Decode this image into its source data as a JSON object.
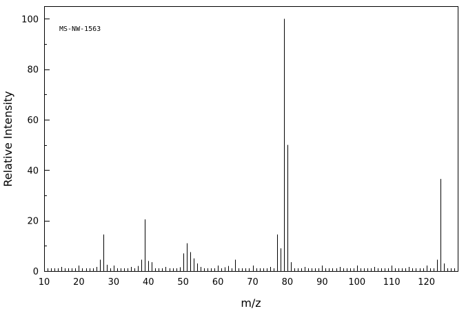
{
  "chart_data": {
    "type": "bar",
    "title": "MS-NW-1563",
    "xlabel": "m/z",
    "ylabel": "Relative Intensity",
    "xlim": [
      10,
      129
    ],
    "ylim": [
      0,
      105
    ],
    "xticks": [
      10,
      20,
      30,
      40,
      50,
      60,
      70,
      80,
      90,
      100,
      110,
      120
    ],
    "yticks": [
      0,
      20,
      40,
      60,
      80,
      100
    ],
    "grid": false,
    "legend": "none",
    "peaks": [
      {
        "mz": 26,
        "intensity": 4.5
      },
      {
        "mz": 27,
        "intensity": 14.5
      },
      {
        "mz": 28,
        "intensity": 2.5
      },
      {
        "mz": 37,
        "intensity": 2
      },
      {
        "mz": 38,
        "intensity": 4.5
      },
      {
        "mz": 39,
        "intensity": 20.5
      },
      {
        "mz": 40,
        "intensity": 4
      },
      {
        "mz": 41,
        "intensity": 3.5
      },
      {
        "mz": 49,
        "intensity": 1.5
      },
      {
        "mz": 50,
        "intensity": 7
      },
      {
        "mz": 51,
        "intensity": 11
      },
      {
        "mz": 52,
        "intensity": 7.5
      },
      {
        "mz": 53,
        "intensity": 5
      },
      {
        "mz": 54,
        "intensity": 3
      },
      {
        "mz": 61,
        "intensity": 1
      },
      {
        "mz": 62,
        "intensity": 1.5
      },
      {
        "mz": 63,
        "intensity": 2
      },
      {
        "mz": 65,
        "intensity": 4.5
      },
      {
        "mz": 74,
        "intensity": 1
      },
      {
        "mz": 75,
        "intensity": 1
      },
      {
        "mz": 77,
        "intensity": 14.5
      },
      {
        "mz": 78,
        "intensity": 9
      },
      {
        "mz": 79,
        "intensity": 100
      },
      {
        "mz": 80,
        "intensity": 50
      },
      {
        "mz": 81,
        "intensity": 3.5
      },
      {
        "mz": 95,
        "intensity": 1
      },
      {
        "mz": 96,
        "intensity": 1
      },
      {
        "mz": 105,
        "intensity": 0.8
      },
      {
        "mz": 106,
        "intensity": 0.8
      },
      {
        "mz": 107,
        "intensity": 1
      },
      {
        "mz": 123,
        "intensity": 4.5
      },
      {
        "mz": 124,
        "intensity": 36.5
      },
      {
        "mz": 125,
        "intensity": 3
      }
    ]
  }
}
